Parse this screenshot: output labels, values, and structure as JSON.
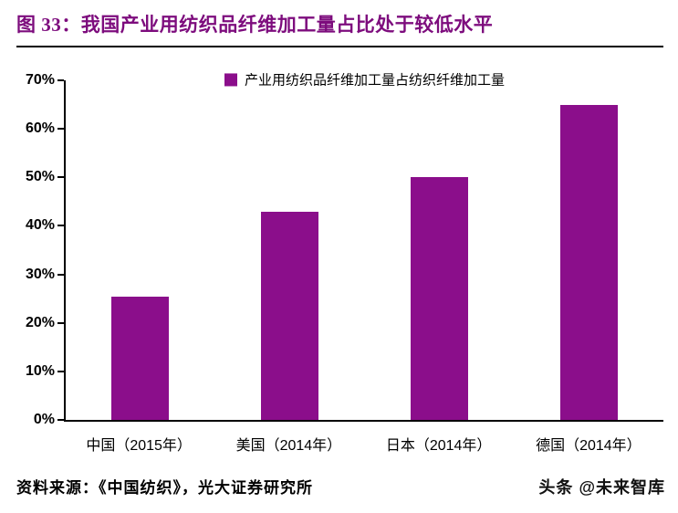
{
  "header": {
    "title": "图 33：我国产业用纺织品纤维加工量占比处于较低水平"
  },
  "chart_data": {
    "type": "bar",
    "legend": "产业用纺织品纤维加工量占纺织纤维加工量",
    "categories": [
      "中国（2015年）",
      "美国（2014年）",
      "日本（2014年）",
      "德国（2014年）"
    ],
    "values": [
      25.5,
      43,
      50,
      65
    ],
    "unit": "%",
    "title": "",
    "xlabel": "",
    "ylabel": "",
    "ylim": [
      0,
      70
    ],
    "ytick_step": 10,
    "yticks": [
      "0%",
      "10%",
      "20%",
      "30%",
      "40%",
      "50%",
      "60%",
      "70%"
    ],
    "grid": false,
    "legend_position": "top-center",
    "bar_color": "#8B0E8B"
  },
  "footer": {
    "source": "资料来源：《中国纺织》，光大证券研究所",
    "watermark_brand": "头条",
    "watermark_handle": "@未来智库"
  },
  "colors": {
    "accent": "#8B0E8B",
    "title_text": "#7D0C7D",
    "axis": "#000000",
    "background": "#FFFFFF"
  }
}
